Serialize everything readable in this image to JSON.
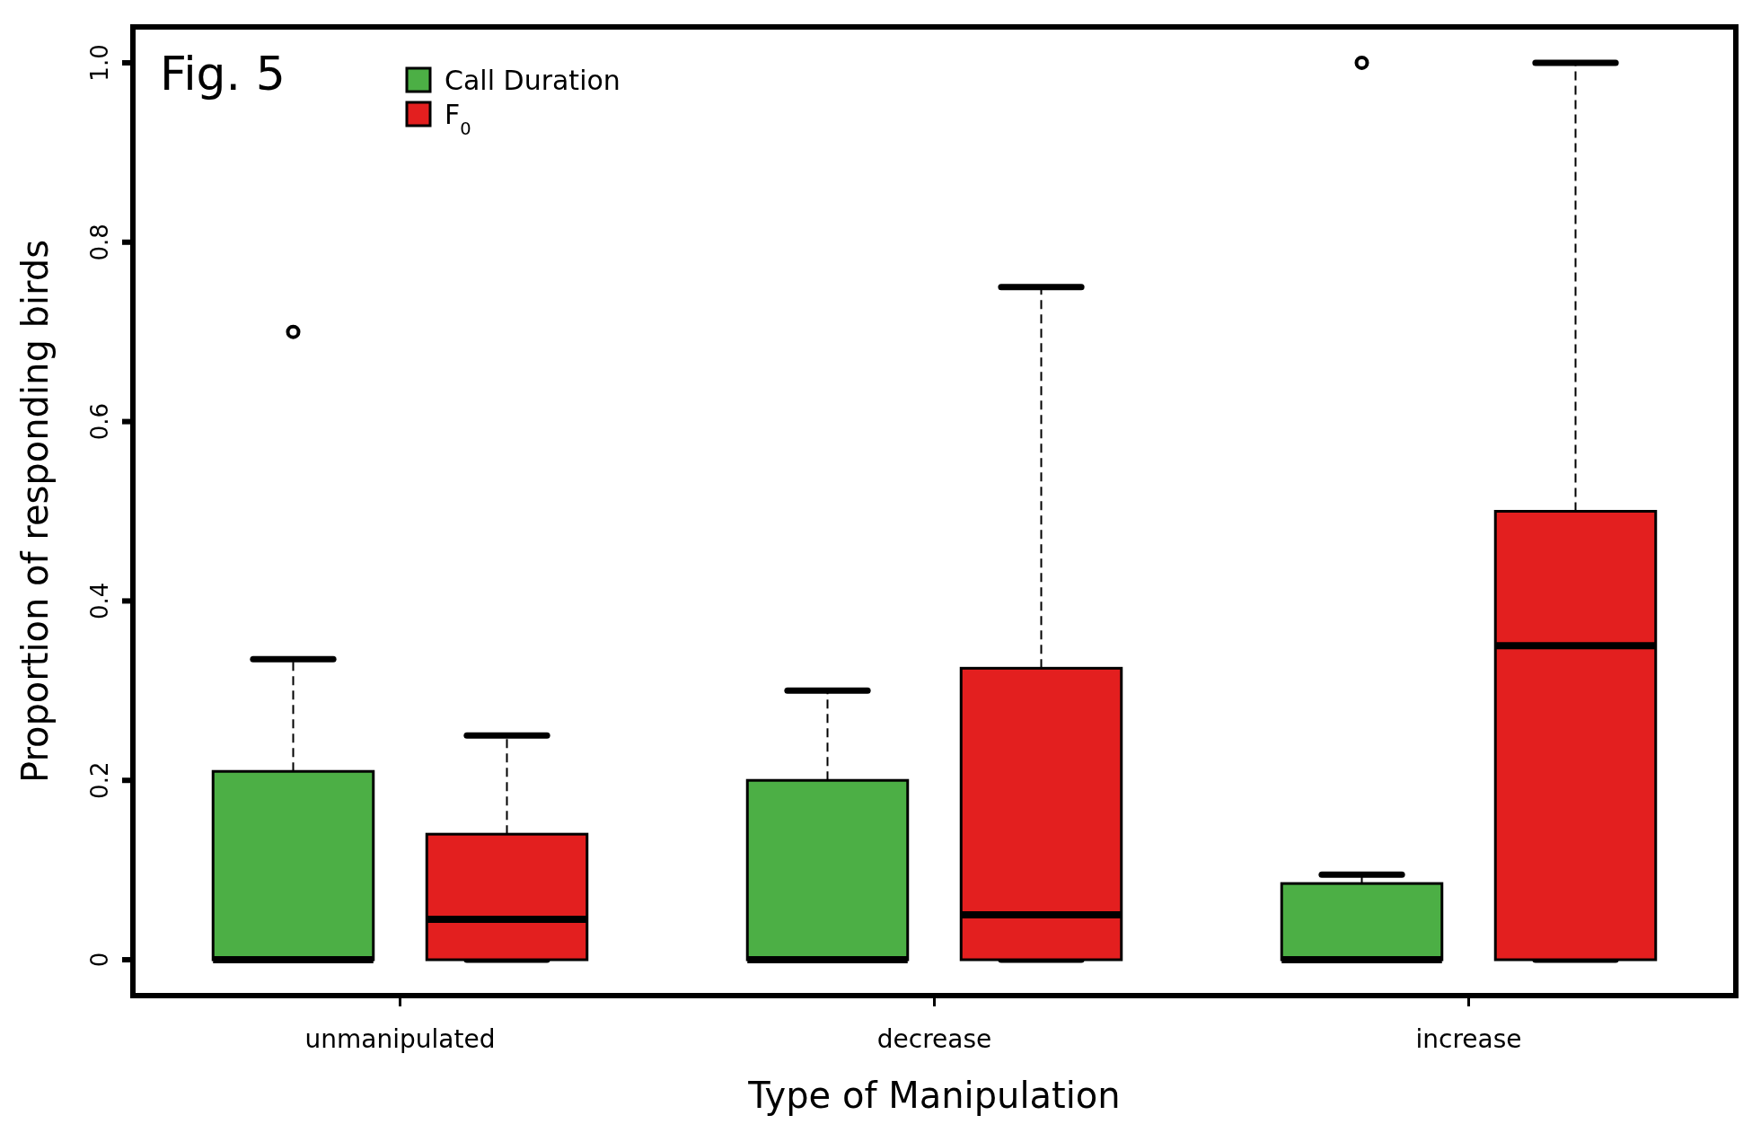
{
  "chart_data": {
    "type": "box",
    "xlabel": "Type of Manipulation",
    "ylabel": "Proportion of responding birds",
    "annotations": [
      "Fig. 5"
    ],
    "categories": [
      "unmanipulated",
      "decrease",
      "increase"
    ],
    "series": [
      {
        "name": "Call Duration",
        "color": "#4caf45",
        "boxes": [
          {
            "low": 0,
            "q1": 0,
            "median": 0,
            "q3": 0.21,
            "high": 0.335,
            "outliers": [
              0.7
            ]
          },
          {
            "low": 0,
            "q1": 0,
            "median": 0,
            "q3": 0.2,
            "high": 0.3
          },
          {
            "low": 0,
            "q1": 0,
            "median": 0,
            "q3": 0.085,
            "high": 0.095,
            "outliers": [
              1.0
            ]
          }
        ]
      },
      {
        "name": "F$_{0}$",
        "color": "#e31f1f",
        "boxes": [
          {
            "low": 0,
            "q1": 0,
            "median": 0.045,
            "q3": 0.14,
            "high": 0.25
          },
          {
            "low": 0,
            "q1": 0,
            "median": 0.05,
            "q3": 0.325,
            "high": 0.75
          },
          {
            "low": 0,
            "q1": 0,
            "median": 0.35,
            "q3": 0.5,
            "high": 1.0
          }
        ]
      }
    ],
    "ylim": [
      -0.04,
      1.04
    ],
    "yticks": [
      0,
      0.2,
      0.4,
      0.6,
      0.8,
      {
        "value": 1,
        "label": "1.0"
      }
    ],
    "grid": false,
    "legend": "top left"
  }
}
